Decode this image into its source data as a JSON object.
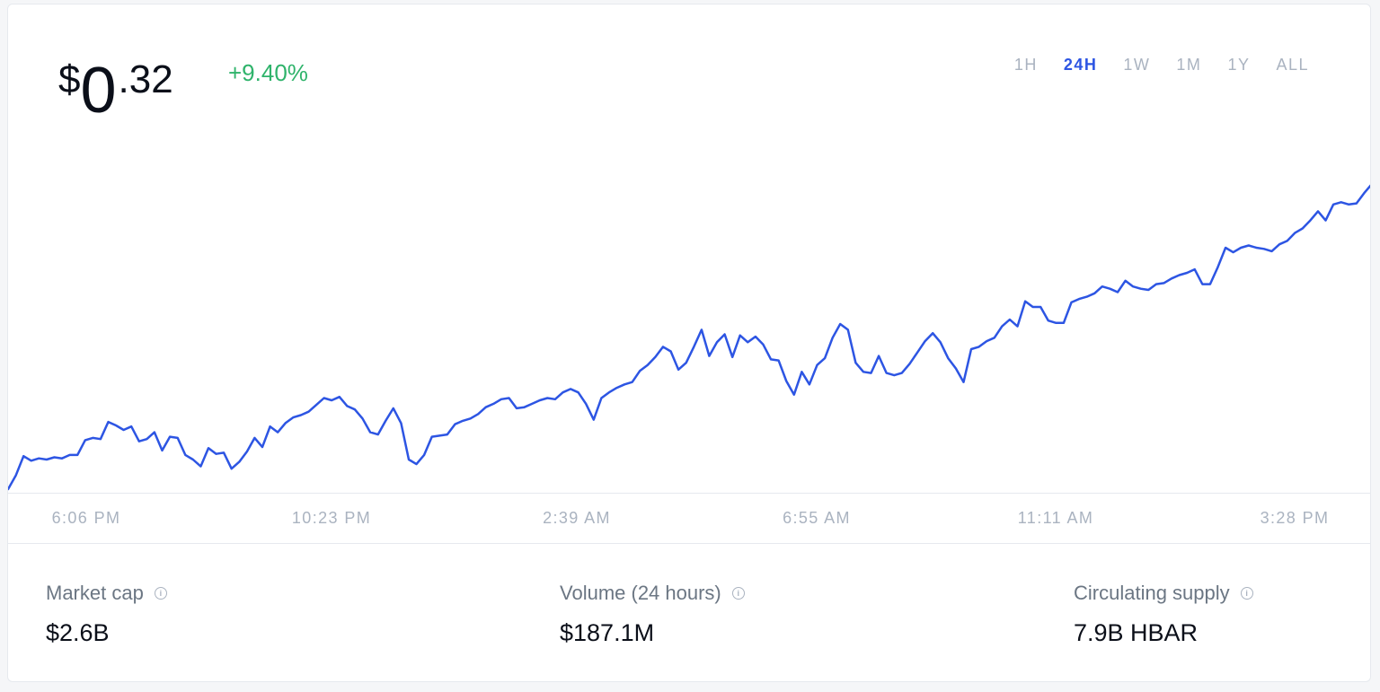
{
  "price": {
    "currency": "$",
    "integer": "0",
    "decimal": ".32"
  },
  "change": "+9.40%",
  "ranges": [
    {
      "label": "1H",
      "active": false
    },
    {
      "label": "24H",
      "active": true
    },
    {
      "label": "1W",
      "active": false
    },
    {
      "label": "1M",
      "active": false
    },
    {
      "label": "1Y",
      "active": false
    },
    {
      "label": "ALL",
      "active": false
    }
  ],
  "colors": {
    "line": "#2d55e3",
    "positive": "#2fb36b",
    "muted": "#aab3c0"
  },
  "chart_data": {
    "type": "line",
    "x_tick_labels": [
      "6:06 PM",
      "10:23 PM",
      "2:39 AM",
      "6:55 AM",
      "11:11 AM",
      "3:28 PM"
    ],
    "series": [
      {
        "values": [
          0.29,
          0.2912,
          0.2929,
          0.2925,
          0.2927,
          0.2926,
          0.2928,
          0.2927,
          0.293,
          0.293,
          0.2943,
          0.2945,
          0.2944,
          0.2959,
          0.2956,
          0.2952,
          0.2955,
          0.2942,
          0.2944,
          0.295,
          0.2934,
          0.2946,
          0.2945,
          0.293,
          0.2926,
          0.292,
          0.2936,
          0.2931,
          0.2932,
          0.2918,
          0.2924,
          0.2933,
          0.2945,
          0.2937,
          0.2955,
          0.295,
          0.2958,
          0.2963,
          0.2965,
          0.2968,
          0.2974,
          0.298,
          0.2978,
          0.2981,
          0.2973,
          0.297,
          0.2962,
          0.295,
          0.2948,
          0.296,
          0.2971,
          0.2958,
          0.2926,
          0.2922,
          0.293,
          0.2946,
          0.2947,
          0.2948,
          0.2957,
          0.296,
          0.2962,
          0.2966,
          0.2972,
          0.2975,
          0.2979,
          0.298,
          0.2971,
          0.2972,
          0.2975,
          0.2978,
          0.298,
          0.2979,
          0.2985,
          0.2988,
          0.2985,
          0.2975,
          0.2961,
          0.298,
          0.2985,
          0.2989,
          0.2992,
          0.2994,
          0.3004,
          0.3009,
          0.3016,
          0.3025,
          0.3021,
          0.3005,
          0.3011,
          0.3025,
          0.304,
          0.3017,
          0.3029,
          0.3036,
          0.3016,
          0.3035,
          0.3029,
          0.3034,
          0.3027,
          0.3014,
          0.3013,
          0.2995,
          0.2983,
          0.3003,
          0.2992,
          0.3009,
          0.3015,
          0.3033,
          0.3045,
          0.304,
          0.3011,
          0.3003,
          0.3002,
          0.3017,
          0.3002,
          0.3,
          0.3002,
          0.301,
          0.302,
          0.303,
          0.3037,
          0.3029,
          0.3015,
          0.3006,
          0.2994,
          0.3023,
          0.3025,
          0.303,
          0.3033,
          0.3043,
          0.3049,
          0.3043,
          0.3065,
          0.306,
          0.306,
          0.3048,
          0.3046,
          0.3046,
          0.3064,
          0.3067,
          0.3069,
          0.3072,
          0.3078,
          0.3076,
          0.3073,
          0.3083,
          0.3078,
          0.3076,
          0.3075,
          0.308,
          0.3081,
          0.3085,
          0.3088,
          0.309,
          0.3093,
          0.308,
          0.308,
          0.3095,
          0.3112,
          0.3108,
          0.3112,
          0.3114,
          0.3112,
          0.3111,
          0.3109,
          0.3115,
          0.3118,
          0.3125,
          0.3129,
          0.3136,
          0.3144,
          0.3136,
          0.315,
          0.3152,
          0.315,
          0.3151,
          0.316,
          0.3168
        ]
      }
    ]
  },
  "stats": [
    {
      "label": "Market cap",
      "value": "$2.6B"
    },
    {
      "label": "Volume (24 hours)",
      "value": "$187.1M"
    },
    {
      "label": "Circulating supply",
      "value": "7.9B HBAR"
    }
  ]
}
